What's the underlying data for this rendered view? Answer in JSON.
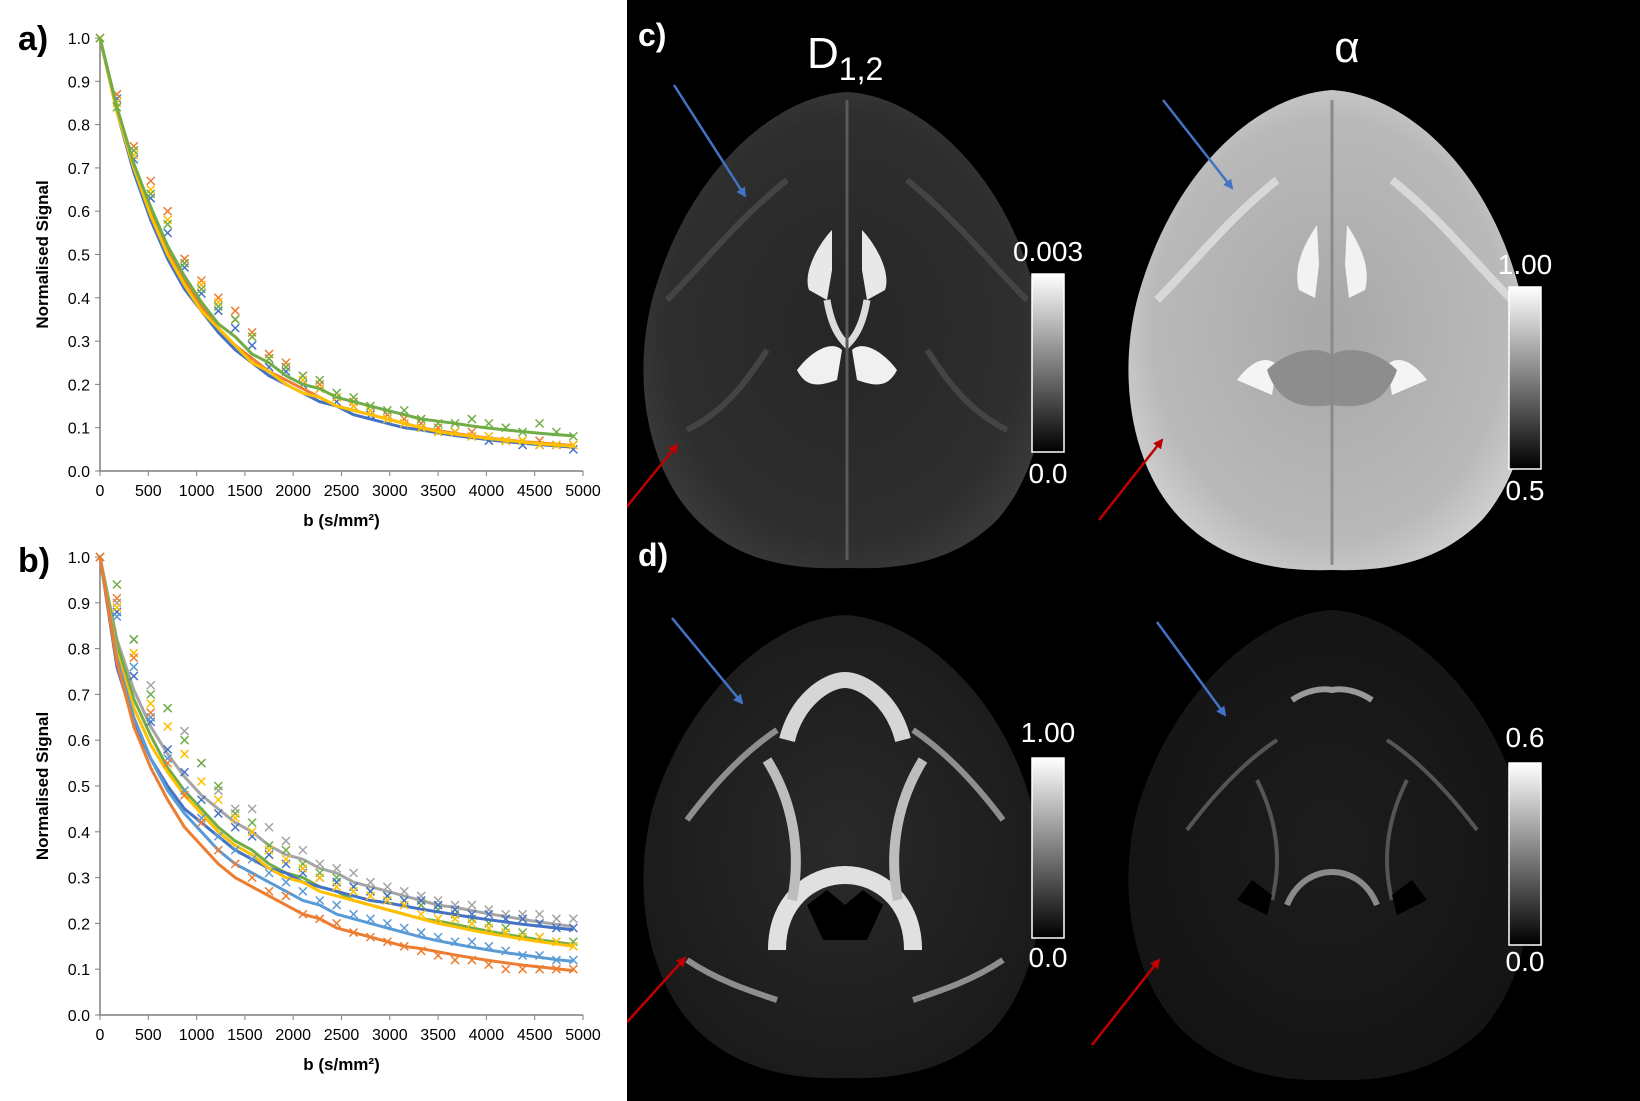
{
  "panels": {
    "a": "a)",
    "b": "b)",
    "c": "c)",
    "d": "d)"
  },
  "chart_data": [
    {
      "type": "scatter",
      "panel": "a)",
      "xlabel": "b (s/mm²)",
      "ylabel": "Normalised Signal",
      "xlim": [
        0,
        5000
      ],
      "ylim": [
        0,
        1.0
      ],
      "xticks": [
        0,
        500,
        1000,
        1500,
        2000,
        2500,
        3000,
        3500,
        4000,
        4500,
        5000
      ],
      "yticks": [
        0.0,
        0.1,
        0.2,
        0.3,
        0.4,
        0.5,
        0.6,
        0.7,
        0.8,
        0.9,
        1.0
      ],
      "grid": false,
      "series": [
        {
          "color": "#4472C4",
          "x": [
            0,
            175,
            350,
            525,
            700,
            875,
            1050,
            1225,
            1400,
            1575,
            1750,
            1925,
            2100,
            2275,
            2450,
            2625,
            2800,
            2975,
            3150,
            3325,
            3500,
            3675,
            3850,
            4025,
            4200,
            4375,
            4550,
            4725,
            4900
          ],
          "points": [
            1.0,
            0.86,
            0.72,
            0.63,
            0.55,
            0.47,
            0.41,
            0.37,
            0.33,
            0.29,
            0.24,
            0.23,
            0.2,
            0.19,
            0.16,
            0.15,
            0.13,
            0.12,
            0.11,
            0.1,
            0.09,
            0.09,
            0.08,
            0.07,
            0.07,
            0.06,
            0.06,
            0.06,
            0.05
          ],
          "fit": [
            1.0,
            0.83,
            0.69,
            0.58,
            0.49,
            0.42,
            0.37,
            0.32,
            0.28,
            0.25,
            0.22,
            0.2,
            0.18,
            0.16,
            0.15,
            0.13,
            0.12,
            0.11,
            0.1,
            0.095,
            0.088,
            0.082,
            0.077,
            0.072,
            0.068,
            0.064,
            0.061,
            0.058,
            0.055
          ]
        },
        {
          "color": "#ED7D31",
          "x": [
            0,
            175,
            350,
            525,
            700,
            875,
            1050,
            1225,
            1400,
            1575,
            1750,
            1925,
            2100,
            2275,
            2450,
            2625,
            2800,
            2975,
            3150,
            3325,
            3500,
            3675,
            3850,
            4025,
            4200,
            4375,
            4550,
            4725,
            4900
          ],
          "points": [
            1.0,
            0.87,
            0.75,
            0.67,
            0.6,
            0.49,
            0.44,
            0.4,
            0.37,
            0.32,
            0.27,
            0.25,
            0.22,
            0.2,
            0.17,
            0.16,
            0.14,
            0.13,
            0.12,
            0.11,
            0.1,
            0.09,
            0.09,
            0.08,
            0.07,
            0.07,
            0.07,
            0.06,
            0.06
          ],
          "fit": [
            1.0,
            0.84,
            0.71,
            0.6,
            0.51,
            0.44,
            0.38,
            0.33,
            0.29,
            0.26,
            0.23,
            0.21,
            0.19,
            0.17,
            0.15,
            0.14,
            0.13,
            0.12,
            0.11,
            0.1,
            0.093,
            0.087,
            0.081,
            0.076,
            0.072,
            0.068,
            0.065,
            0.062,
            0.059
          ]
        },
        {
          "color": "#FFC000",
          "x": [
            0,
            175,
            350,
            525,
            700,
            875,
            1050,
            1225,
            1400,
            1575,
            1750,
            1925,
            2100,
            2275,
            2450,
            2625,
            2800,
            2975,
            3150,
            3325,
            3500,
            3675,
            3850,
            4025,
            4200,
            4375,
            4550,
            4725,
            4900
          ],
          "points": [
            1.0,
            0.85,
            0.73,
            0.65,
            0.58,
            0.48,
            0.43,
            0.39,
            0.35,
            0.31,
            0.26,
            0.24,
            0.21,
            0.19,
            0.17,
            0.15,
            0.14,
            0.12,
            0.11,
            0.1,
            0.09,
            0.09,
            0.08,
            0.08,
            0.07,
            0.07,
            0.06,
            0.06,
            0.06
          ],
          "fit": [
            1.0,
            0.83,
            0.7,
            0.59,
            0.5,
            0.43,
            0.37,
            0.33,
            0.29,
            0.25,
            0.23,
            0.2,
            0.18,
            0.17,
            0.15,
            0.14,
            0.13,
            0.12,
            0.11,
            0.1,
            0.091,
            0.085,
            0.08,
            0.075,
            0.071,
            0.067,
            0.063,
            0.06,
            0.057
          ]
        },
        {
          "color": "#70AD47",
          "x": [
            0,
            175,
            350,
            525,
            700,
            875,
            1050,
            1225,
            1400,
            1575,
            1750,
            1925,
            2100,
            2275,
            2450,
            2625,
            2800,
            2975,
            3150,
            3325,
            3500,
            3675,
            3850,
            4025,
            4200,
            4375,
            4550,
            4725,
            4900
          ],
          "points": [
            1.0,
            0.84,
            0.74,
            0.64,
            0.57,
            0.48,
            0.42,
            0.38,
            0.35,
            0.31,
            0.26,
            0.24,
            0.22,
            0.21,
            0.18,
            0.17,
            0.15,
            0.14,
            0.14,
            0.12,
            0.11,
            0.11,
            0.12,
            0.11,
            0.1,
            0.09,
            0.11,
            0.09,
            0.08
          ],
          "fit": [
            1.0,
            0.84,
            0.71,
            0.61,
            0.52,
            0.45,
            0.39,
            0.34,
            0.31,
            0.27,
            0.25,
            0.22,
            0.2,
            0.19,
            0.17,
            0.16,
            0.15,
            0.14,
            0.13,
            0.12,
            0.115,
            0.11,
            0.104,
            0.099,
            0.095,
            0.091,
            0.087,
            0.084,
            0.081
          ]
        }
      ]
    },
    {
      "type": "scatter",
      "panel": "b)",
      "xlabel": "b (s/mm²)",
      "ylabel": "Normalised Signal",
      "xlim": [
        0,
        5000
      ],
      "ylim": [
        0,
        1.0
      ],
      "xticks": [
        0,
        500,
        1000,
        1500,
        2000,
        2500,
        3000,
        3500,
        4000,
        4500,
        5000
      ],
      "yticks": [
        0.0,
        0.1,
        0.2,
        0.3,
        0.4,
        0.5,
        0.6,
        0.7,
        0.8,
        0.9,
        1.0
      ],
      "grid": false,
      "series": [
        {
          "color": "#A5A5A5",
          "x": [
            0,
            175,
            350,
            525,
            700,
            875,
            1050,
            1225,
            1400,
            1575,
            1750,
            1925,
            2100,
            2275,
            2450,
            2625,
            2800,
            2975,
            3150,
            3325,
            3500,
            3675,
            3850,
            4025,
            4200,
            4375,
            4550,
            4725,
            4900
          ],
          "points": [
            1.0,
            0.9,
            0.82,
            0.72,
            0.67,
            0.62,
            0.55,
            0.49,
            0.45,
            0.45,
            0.41,
            0.38,
            0.36,
            0.33,
            0.32,
            0.31,
            0.29,
            0.28,
            0.27,
            0.26,
            0.25,
            0.24,
            0.24,
            0.23,
            0.22,
            0.22,
            0.22,
            0.21,
            0.21
          ],
          "fit": [
            1.0,
            0.82,
            0.71,
            0.63,
            0.57,
            0.52,
            0.48,
            0.45,
            0.42,
            0.4,
            0.37,
            0.35,
            0.34,
            0.32,
            0.31,
            0.29,
            0.28,
            0.27,
            0.26,
            0.25,
            0.24,
            0.235,
            0.228,
            0.221,
            0.215,
            0.209,
            0.203,
            0.198,
            0.193
          ]
        },
        {
          "color": "#70AD47",
          "x": [
            0,
            175,
            350,
            525,
            700,
            875,
            1050,
            1225,
            1400,
            1575,
            1750,
            1925,
            2100,
            2275,
            2450,
            2625,
            2800,
            2975,
            3150,
            3325,
            3500,
            3675,
            3850,
            4025,
            4200,
            4375,
            4550,
            4725,
            4900
          ],
          "points": [
            1.0,
            0.94,
            0.82,
            0.7,
            0.67,
            0.6,
            0.55,
            0.5,
            0.44,
            0.42,
            0.37,
            0.36,
            0.33,
            0.31,
            0.3,
            0.28,
            0.27,
            0.26,
            0.25,
            0.24,
            0.23,
            0.22,
            0.21,
            0.2,
            0.19,
            0.18,
            0.17,
            0.16,
            0.16
          ],
          "fit": [
            1.0,
            0.81,
            0.69,
            0.61,
            0.54,
            0.49,
            0.45,
            0.41,
            0.38,
            0.36,
            0.33,
            0.31,
            0.3,
            0.28,
            0.27,
            0.25,
            0.24,
            0.23,
            0.22,
            0.21,
            0.205,
            0.198,
            0.19,
            0.183,
            0.176,
            0.17,
            0.164,
            0.159,
            0.154
          ]
        },
        {
          "color": "#4472C4",
          "x": [
            0,
            175,
            350,
            525,
            700,
            875,
            1050,
            1225,
            1400,
            1575,
            1750,
            1925,
            2100,
            2275,
            2450,
            2625,
            2800,
            2975,
            3150,
            3325,
            3500,
            3675,
            3850,
            4025,
            4200,
            4375,
            4550,
            4725,
            4900
          ],
          "points": [
            1.0,
            0.88,
            0.74,
            0.64,
            0.58,
            0.53,
            0.47,
            0.44,
            0.41,
            0.39,
            0.35,
            0.33,
            0.31,
            0.3,
            0.29,
            0.28,
            0.27,
            0.26,
            0.25,
            0.25,
            0.24,
            0.23,
            0.22,
            0.22,
            0.21,
            0.21,
            0.2,
            0.19,
            0.19
          ],
          "fit": [
            1.0,
            0.76,
            0.64,
            0.56,
            0.5,
            0.45,
            0.42,
            0.39,
            0.36,
            0.34,
            0.32,
            0.31,
            0.29,
            0.28,
            0.27,
            0.26,
            0.25,
            0.245,
            0.238,
            0.231,
            0.225,
            0.219,
            0.213,
            0.208,
            0.203,
            0.198,
            0.194,
            0.19,
            0.186
          ]
        },
        {
          "color": "#FFC000",
          "x": [
            0,
            175,
            350,
            525,
            700,
            875,
            1050,
            1225,
            1400,
            1575,
            1750,
            1925,
            2100,
            2275,
            2450,
            2625,
            2800,
            2975,
            3150,
            3325,
            3500,
            3675,
            3850,
            4025,
            4200,
            4375,
            4550,
            4725,
            4900
          ],
          "points": [
            1.0,
            0.89,
            0.79,
            0.68,
            0.63,
            0.57,
            0.51,
            0.47,
            0.43,
            0.4,
            0.36,
            0.34,
            0.32,
            0.3,
            0.28,
            0.27,
            0.26,
            0.25,
            0.24,
            0.22,
            0.21,
            0.21,
            0.2,
            0.19,
            0.18,
            0.17,
            0.17,
            0.16,
            0.15
          ],
          "fit": [
            1.0,
            0.79,
            0.67,
            0.59,
            0.53,
            0.48,
            0.44,
            0.4,
            0.37,
            0.35,
            0.32,
            0.3,
            0.29,
            0.27,
            0.26,
            0.25,
            0.24,
            0.23,
            0.22,
            0.21,
            0.2,
            0.193,
            0.185,
            0.178,
            0.172,
            0.166,
            0.16,
            0.155,
            0.15
          ]
        },
        {
          "color": "#5B9BD5",
          "x": [
            0,
            175,
            350,
            525,
            700,
            875,
            1050,
            1225,
            1400,
            1575,
            1750,
            1925,
            2100,
            2275,
            2450,
            2625,
            2800,
            2975,
            3150,
            3325,
            3500,
            3675,
            3850,
            4025,
            4200,
            4375,
            4550,
            4725,
            4900
          ],
          "points": [
            1.0,
            0.87,
            0.76,
            0.65,
            0.56,
            0.49,
            0.43,
            0.39,
            0.36,
            0.34,
            0.31,
            0.29,
            0.27,
            0.25,
            0.24,
            0.22,
            0.21,
            0.2,
            0.19,
            0.18,
            0.17,
            0.16,
            0.16,
            0.15,
            0.14,
            0.13,
            0.13,
            0.12,
            0.12
          ],
          "fit": [
            1.0,
            0.78,
            0.65,
            0.56,
            0.49,
            0.44,
            0.4,
            0.36,
            0.33,
            0.31,
            0.29,
            0.27,
            0.25,
            0.24,
            0.22,
            0.21,
            0.2,
            0.19,
            0.18,
            0.17,
            0.162,
            0.155,
            0.148,
            0.142,
            0.136,
            0.131,
            0.126,
            0.121,
            0.117
          ]
        },
        {
          "color": "#ED7D31",
          "x": [
            0,
            175,
            350,
            525,
            700,
            875,
            1050,
            1225,
            1400,
            1575,
            1750,
            1925,
            2100,
            2275,
            2450,
            2625,
            2800,
            2975,
            3150,
            3325,
            3500,
            3675,
            3850,
            4025,
            4200,
            4375,
            4550,
            4725,
            4900
          ],
          "points": [
            1.0,
            0.91,
            0.78,
            0.66,
            0.55,
            0.48,
            0.42,
            0.36,
            0.33,
            0.3,
            0.27,
            0.26,
            0.22,
            0.21,
            0.2,
            0.18,
            0.17,
            0.16,
            0.15,
            0.14,
            0.13,
            0.12,
            0.12,
            0.11,
            0.1,
            0.1,
            0.1,
            0.1,
            0.1
          ],
          "fit": [
            1.0,
            0.77,
            0.63,
            0.54,
            0.47,
            0.41,
            0.37,
            0.33,
            0.3,
            0.28,
            0.26,
            0.24,
            0.22,
            0.21,
            0.19,
            0.18,
            0.17,
            0.16,
            0.15,
            0.145,
            0.138,
            0.131,
            0.125,
            0.119,
            0.114,
            0.109,
            0.105,
            0.101,
            0.097
          ]
        }
      ]
    }
  ],
  "maps": {
    "c": {
      "left": {
        "title_main": "D",
        "title_sub": "1,2",
        "cbar_max": "0.003",
        "cbar_min": "0.0"
      },
      "right": {
        "title": "α",
        "cbar_max": "1.00",
        "cbar_min": "0.5"
      }
    },
    "d": {
      "left": {
        "cbar_max": "1.00",
        "cbar_min": "0.0"
      },
      "right": {
        "cbar_max": "0.6",
        "cbar_min": "0.0"
      }
    }
  },
  "arrow_colors": {
    "blue": "#4472C4",
    "red": "#C00000"
  }
}
